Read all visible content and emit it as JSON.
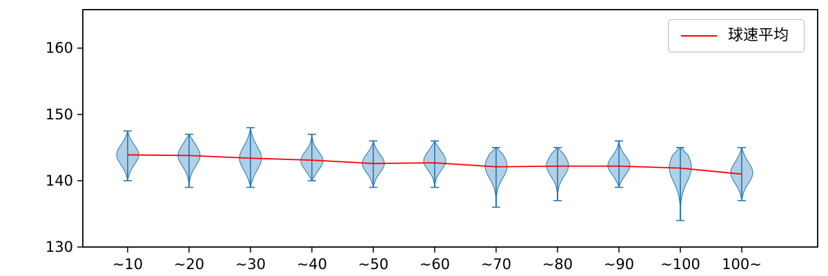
{
  "figure": {
    "background": "#ffffff"
  },
  "chart_data": {
    "type": "violin",
    "title": "",
    "xlabel": "",
    "ylabel": "",
    "categories": [
      "~10",
      "~20",
      "~30",
      "~40",
      "~50",
      "~60",
      "~70",
      "~80",
      "~90",
      "~100",
      "100~"
    ],
    "violins": [
      {
        "category": "~10",
        "min": 140,
        "max": 147.5,
        "mode": 143.9
      },
      {
        "category": "~20",
        "min": 139,
        "max": 147,
        "mode": 143.8
      },
      {
        "category": "~30",
        "min": 139,
        "max": 148,
        "mode": 143.4
      },
      {
        "category": "~40",
        "min": 140,
        "max": 147,
        "mode": 143.0
      },
      {
        "category": "~50",
        "min": 139,
        "max": 146,
        "mode": 142.6
      },
      {
        "category": "~60",
        "min": 139,
        "max": 146,
        "mode": 143.0
      },
      {
        "category": "~70",
        "min": 136,
        "max": 145,
        "mode": 142.2
      },
      {
        "category": "~80",
        "min": 137,
        "max": 145,
        "mode": 142.3
      },
      {
        "category": "~90",
        "min": 139,
        "max": 146,
        "mode": 142.3
      },
      {
        "category": "~100",
        "min": 134,
        "max": 145,
        "mode": 142.0
      },
      {
        "category": "100~",
        "min": 137,
        "max": 145,
        "mode": 141.2
      }
    ],
    "series": [
      {
        "name": "球速平均",
        "values": [
          143.9,
          143.8,
          143.4,
          143.1,
          142.6,
          142.7,
          142.1,
          142.2,
          142.2,
          141.9,
          141.0
        ]
      }
    ],
    "legend": {
      "label": "球速平均",
      "position": "upper right"
    },
    "yticks": [
      130,
      140,
      150,
      160
    ],
    "ylim": [
      130,
      165.8
    ],
    "grid": false,
    "colors": {
      "violin_edge": "#1f77b4",
      "violin_fill": "#1f77b4",
      "violin_fill_alpha": 0.35,
      "mean_line": "#ff0000",
      "axis": "#000000",
      "tick_label": "#000000"
    }
  }
}
